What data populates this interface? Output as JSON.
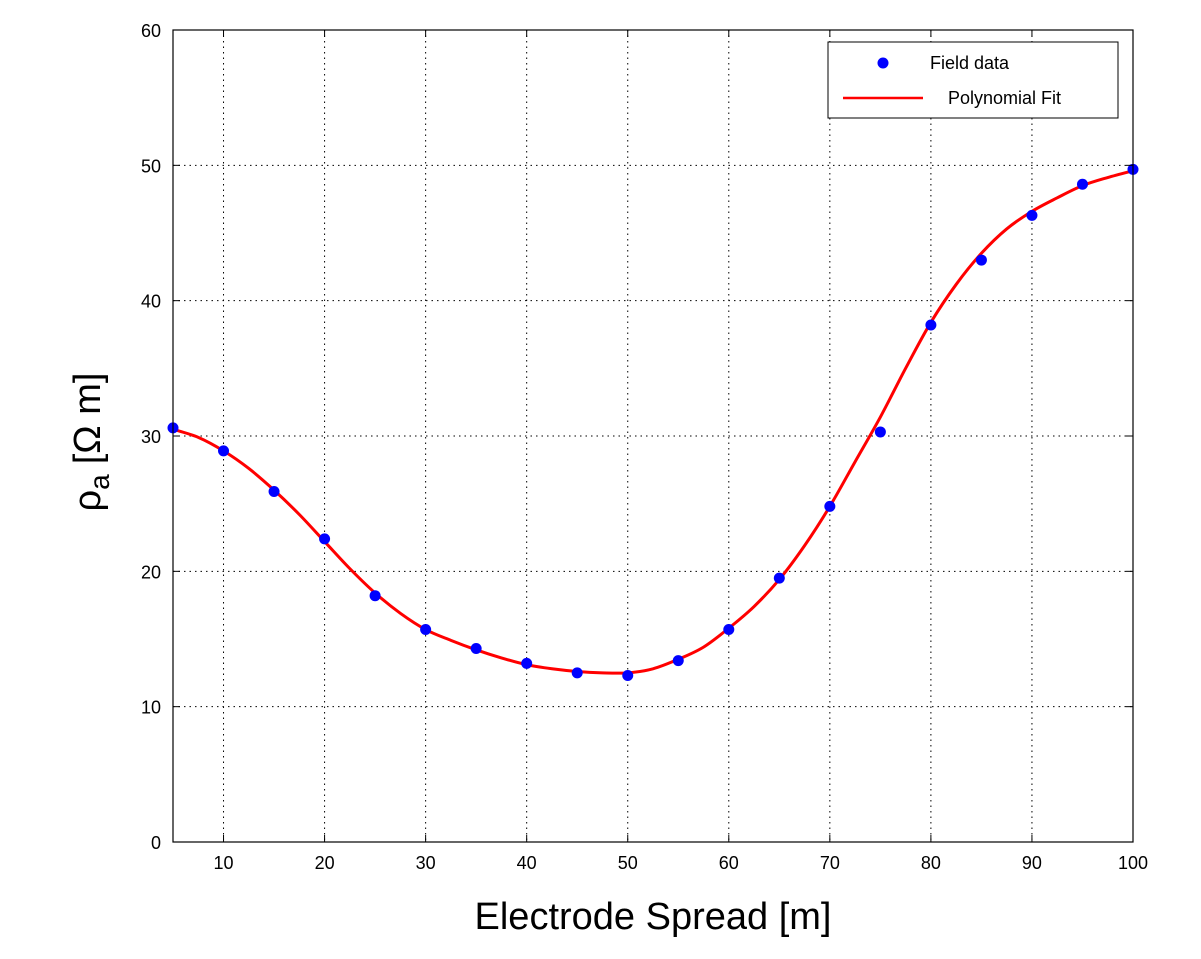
{
  "chart_data": {
    "type": "scatter",
    "title": "",
    "xlabel": "Electrode Spread [m]",
    "ylabel_symbol": "ρ",
    "ylabel_subscript": "a",
    "ylabel_units": "[Ω m]",
    "xlim": [
      5,
      100
    ],
    "ylim": [
      0,
      60
    ],
    "xticks": [
      10,
      20,
      30,
      40,
      50,
      60,
      70,
      80,
      90,
      100
    ],
    "yticks": [
      0,
      10,
      20,
      30,
      40,
      50,
      60
    ],
    "grid": true,
    "legend_position": "top-right",
    "series": [
      {
        "name": "Field data",
        "kind": "markers",
        "color": "#0000ff",
        "x": [
          5,
          10,
          15,
          20,
          25,
          30,
          35,
          40,
          45,
          50,
          55,
          60,
          65,
          70,
          75,
          80,
          85,
          90,
          95,
          100
        ],
        "y": [
          30.6,
          28.9,
          25.9,
          22.4,
          18.2,
          15.7,
          14.3,
          13.2,
          12.5,
          12.3,
          13.4,
          15.7,
          19.5,
          24.8,
          30.3,
          38.2,
          43.0,
          46.3,
          48.6,
          49.7
        ]
      },
      {
        "name": "Polynomial Fit",
        "kind": "line",
        "color": "#ff0000",
        "x": [
          5,
          7.5,
          10,
          12.5,
          15,
          17.5,
          20,
          22.5,
          25,
          27.5,
          30,
          32.5,
          35,
          37.5,
          40,
          42.5,
          45,
          47.5,
          50,
          52.5,
          55,
          57.5,
          60,
          62.5,
          65,
          67.5,
          70,
          72.5,
          75,
          77.5,
          80,
          82.5,
          85,
          87.5,
          90,
          92.5,
          95,
          97.5,
          100
        ],
        "y": [
          30.5,
          29.9,
          28.9,
          27.6,
          26.0,
          24.2,
          22.2,
          20.2,
          18.4,
          16.9,
          15.7,
          14.9,
          14.2,
          13.6,
          13.1,
          12.8,
          12.6,
          12.5,
          12.5,
          12.8,
          13.5,
          14.4,
          15.8,
          17.4,
          19.4,
          21.9,
          24.8,
          28.1,
          31.4,
          35.0,
          38.4,
          41.2,
          43.5,
          45.3,
          46.6,
          47.6,
          48.5,
          49.1,
          49.6
        ]
      }
    ]
  }
}
